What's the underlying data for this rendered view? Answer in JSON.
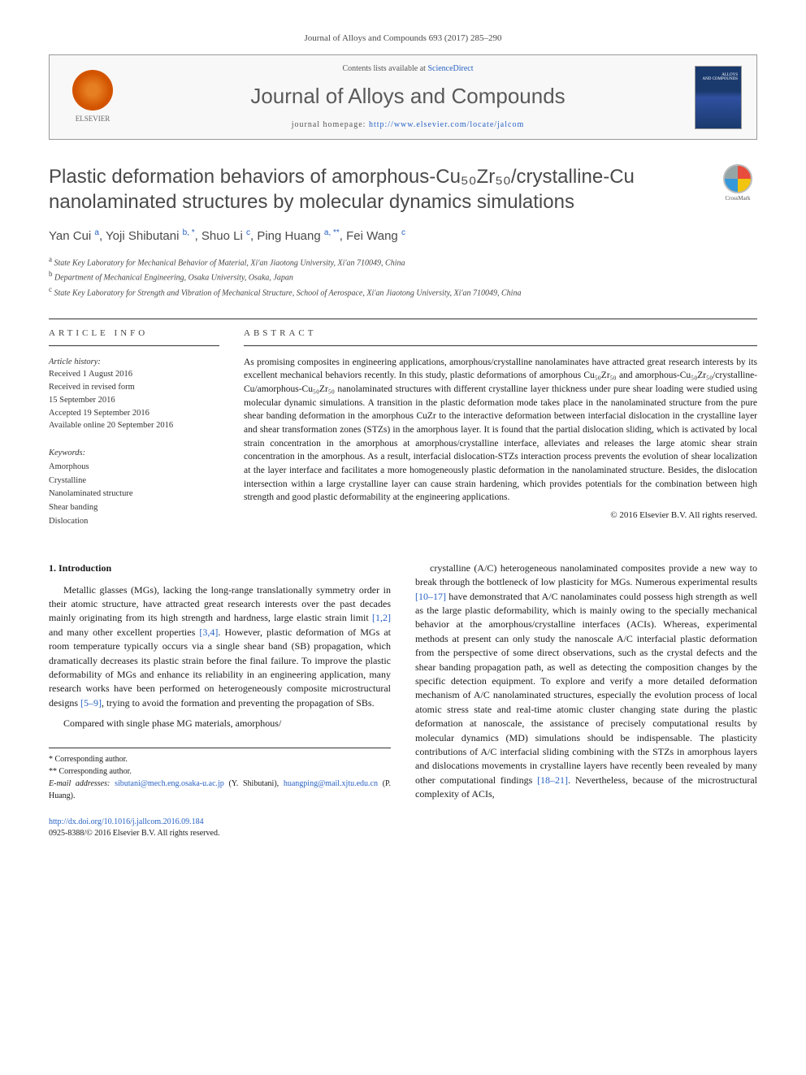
{
  "header": {
    "reference": "Journal of Alloys and Compounds 693 (2017) 285–290",
    "contents_prefix": "Contents lists available at ",
    "contents_link": "ScienceDirect",
    "journal_name": "Journal of Alloys and Compounds",
    "homepage_prefix": "journal homepage: ",
    "homepage_url": "http://www.elsevier.com/locate/jalcom",
    "publisher": "ELSEVIER"
  },
  "title": "Plastic deformation behaviors of amorphous-Cu₅₀Zr₅₀/crystalline-Cu nanolaminated structures by molecular dynamics simulations",
  "crossmark_label": "CrossMark",
  "authors_html": "Yan Cui <sup>a</sup>, Yoji Shibutani <sup>b, *</sup>, Shuo Li <sup>c</sup>, Ping Huang <sup>a, **</sup>, Fei Wang <sup>c</sup>",
  "affiliations": [
    {
      "sup": "a",
      "text": "State Key Laboratory for Mechanical Behavior of Material, Xi'an Jiaotong University, Xi'an 710049, China"
    },
    {
      "sup": "b",
      "text": "Department of Mechanical Engineering, Osaka University, Osaka, Japan"
    },
    {
      "sup": "c",
      "text": "State Key Laboratory for Strength and Vibration of Mechanical Structure, School of Aerospace, Xi'an Jiaotong University, Xi'an 710049, China"
    }
  ],
  "article_info": {
    "header": "ARTICLE INFO",
    "history_title": "Article history:",
    "history": [
      "Received 1 August 2016",
      "Received in revised form",
      "15 September 2016",
      "Accepted 19 September 2016",
      "Available online 20 September 2016"
    ],
    "keywords_title": "Keywords:",
    "keywords": [
      "Amorphous",
      "Crystalline",
      "Nanolaminated structure",
      "Shear banding",
      "Dislocation"
    ]
  },
  "abstract": {
    "header": "ABSTRACT",
    "text": "As promising composites in engineering applications, amorphous/crystalline nanolaminates have attracted great research interests by its excellent mechanical behaviors recently. In this study, plastic deformations of amorphous Cu₅₀Zr₅₀ and amorphous-Cu₅₀Zr₅₀/crystalline-Cu/amorphous-Cu₅₀Zr₅₀ nanolaminated structures with different crystalline layer thickness under pure shear loading were studied using molecular dynamic simulations. A transition in the plastic deformation mode takes place in the nanolaminated structure from the pure shear banding deformation in the amorphous CuZr to the interactive deformation between interfacial dislocation in the crystalline layer and shear transformation zones (STZs) in the amorphous layer. It is found that the partial dislocation sliding, which is activated by local strain concentration in the amorphous at amorphous/crystalline interface, alleviates and releases the large atomic shear strain concentration in the amorphous. As a result, interfacial dislocation-STZs interaction process prevents the evolution of shear localization at the layer interface and facilitates a more homogeneously plastic deformation in the nanolaminated structure. Besides, the dislocation intersection within a large crystalline layer can cause strain hardening, which provides potentials for the combination between high strength and good plastic deformability at the engineering applications.",
    "copyright": "© 2016 Elsevier B.V. All rights reserved."
  },
  "body": {
    "section_heading": "1. Introduction",
    "left_paras": [
      "Metallic glasses (MGs), lacking the long-range translationally symmetry order in their atomic structure, have attracted great research interests over the past decades mainly originating from its high strength and hardness, large elastic strain limit <span class=\"ref-link\">[1,2]</span> and many other excellent properties <span class=\"ref-link\">[3,4]</span>. However, plastic deformation of MGs at room temperature typically occurs via a single shear band (SB) propagation, which dramatically decreases its plastic strain before the final failure. To improve the plastic deformability of MGs and enhance its reliability in an engineering application, many research works have been performed on heterogeneously composite microstructural designs <span class=\"ref-link\">[5–9]</span>, trying to avoid the formation and preventing the propagation of SBs.",
      "Compared with single phase MG materials, amorphous/"
    ],
    "right_paras": [
      "crystalline (A/C) heterogeneous nanolaminated composites provide a new way to break through the bottleneck of low plasticity for MGs. Numerous experimental results <span class=\"ref-link\">[10–17]</span> have demonstrated that A/C nanolaminates could possess high strength as well as the large plastic deformability, which is mainly owing to the specially mechanical behavior at the amorphous/crystalline interfaces (ACIs). Whereas, experimental methods at present can only study the nanoscale A/C interfacial plastic deformation from the perspective of some direct observations, such as the crystal defects and the shear banding propagation path, as well as detecting the composition changes by the specific detection equipment. To explore and verify a more detailed deformation mechanism of A/C nanolaminated structures, especially the evolution process of local atomic stress state and real-time atomic cluster changing state during the plastic deformation at nanoscale, the assistance of precisely computational results by molecular dynamics (MD) simulations should be indispensable. The plasticity contributions of A/C interfacial sliding combining with the STZs in amorphous layers and dislocations movements in crystalline layers have recently been revealed by many other computational findings <span class=\"ref-link\">[18–21]</span>. Nevertheless, because of the microstructural complexity of ACIs,"
    ]
  },
  "footer": {
    "corr1": "* Corresponding author.",
    "corr2": "** Corresponding author.",
    "email_label": "E-mail addresses:",
    "email1": "sibutani@mech.eng.osaka-u.ac.jp",
    "email1_who": " (Y. Shibutani), ",
    "email2": "huangping@mail.xjtu.edu.cn",
    "email2_who": " (P. Huang)."
  },
  "doi": {
    "url": "http://dx.doi.org/10.1016/j.jallcom.2016.09.184",
    "issn_line": "0925-8388/© 2016 Elsevier B.V. All rights reserved."
  },
  "colors": {
    "link": "#2962c4",
    "text": "#1a1a1a",
    "muted": "#4a4a4a"
  }
}
